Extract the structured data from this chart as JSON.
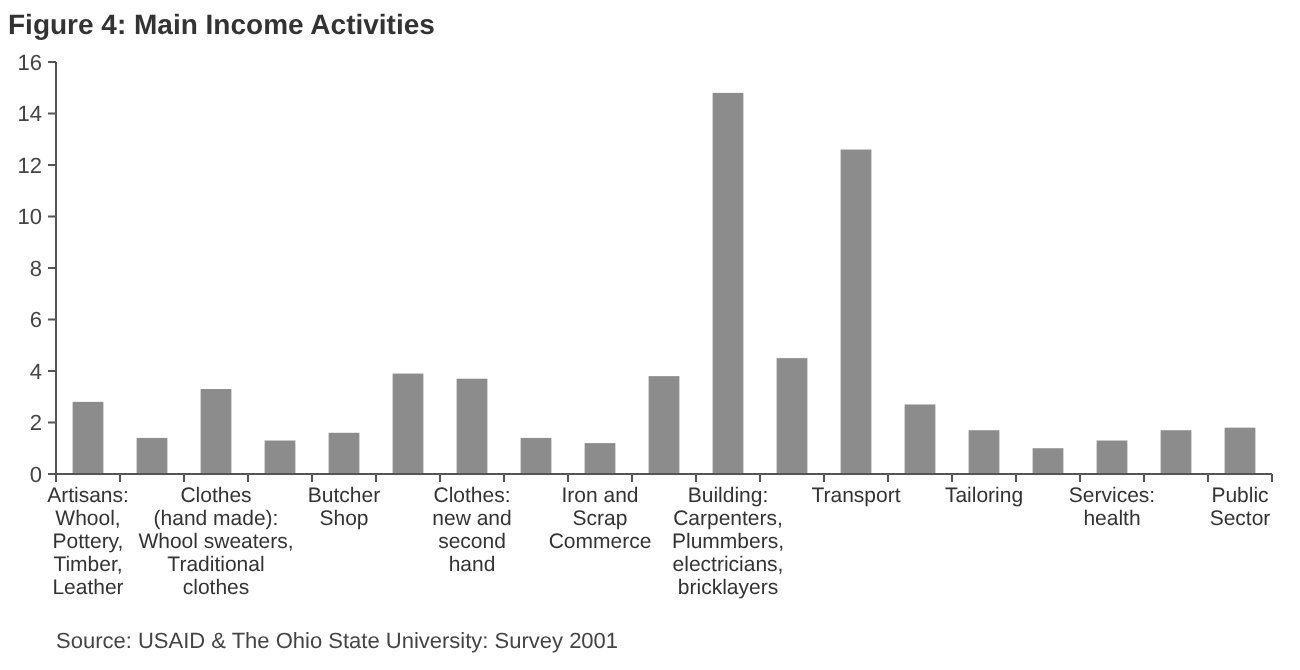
{
  "chart_data": {
    "type": "bar",
    "title": "Figure 4: Main Income Activities",
    "categories": [
      "Artisans:\nWhool,\nPottery,\nTimber,\nLeather",
      null,
      "Clothes\n(hand made):\nWhool sweaters,\nTraditional\nclothes",
      null,
      "Butcher\nShop",
      null,
      "Clothes:\nnew and\nsecond\nhand",
      null,
      "Iron and\nScrap\nCommerce",
      null,
      "Building:\nCarpenters,\nPlummbers,\nelectricians,\nbricklayers",
      null,
      "Transport",
      null,
      "Tailoring",
      null,
      "Services:\nhealth",
      null,
      "Public\nSector"
    ],
    "values": [
      2.8,
      1.4,
      3.3,
      1.3,
      1.6,
      3.9,
      3.7,
      1.4,
      1.2,
      3.8,
      14.8,
      4.5,
      12.6,
      2.7,
      1.7,
      1.0,
      1.3,
      1.7,
      1.8
    ],
    "color": "#8c8c8c",
    "ylim": [
      0,
      16
    ],
    "yticks": [
      0,
      2,
      4,
      6,
      8,
      10,
      12,
      14,
      16
    ],
    "grid": false,
    "annotations": [
      "Source: USAID & The Ohio State University: Survey 2001"
    ]
  }
}
